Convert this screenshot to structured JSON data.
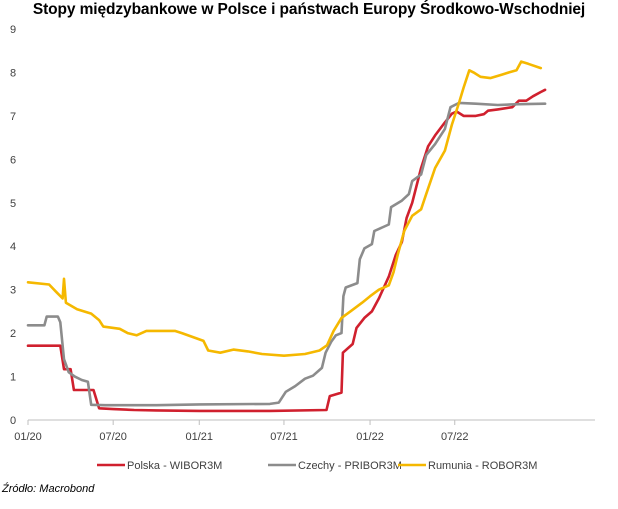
{
  "chart_data": {
    "type": "line",
    "title": "Stopy międzybankowe w Polsce i państwach Europy Środkowo-Wschodniej",
    "xlabel": "",
    "ylabel": "",
    "ylim": [
      0,
      9
    ],
    "yticks": [
      0,
      1,
      2,
      3,
      4,
      5,
      6,
      7,
      8,
      9
    ],
    "x_range": [
      "2020-01",
      "2023-05"
    ],
    "x_ticks": [
      "01/20",
      "07/20",
      "01/21",
      "07/21",
      "01/22",
      "07/22"
    ],
    "grid": false,
    "legend_position": "bottom",
    "source": "Źródło: Macrobond",
    "series": [
      {
        "name": "Polska - WIBOR3M",
        "color": "#d0202e",
        "points": [
          [
            "2020-01-01",
            1.71
          ],
          [
            "2020-03-10",
            1.71
          ],
          [
            "2020-03-18",
            1.17
          ],
          [
            "2020-04-01",
            1.17
          ],
          [
            "2020-04-08",
            0.69
          ],
          [
            "2020-05-20",
            0.69
          ],
          [
            "2020-06-01",
            0.27
          ],
          [
            "2020-07-01",
            0.25
          ],
          [
            "2020-08-15",
            0.23
          ],
          [
            "2020-10-01",
            0.22
          ],
          [
            "2021-01-01",
            0.21
          ],
          [
            "2021-06-01",
            0.21
          ],
          [
            "2021-09-30",
            0.23
          ],
          [
            "2021-10-07",
            0.55
          ],
          [
            "2021-11-01",
            0.63
          ],
          [
            "2021-11-04",
            1.55
          ],
          [
            "2021-11-25",
            1.75
          ],
          [
            "2021-12-03",
            2.12
          ],
          [
            "2021-12-20",
            2.35
          ],
          [
            "2022-01-05",
            2.5
          ],
          [
            "2022-01-20",
            2.8
          ],
          [
            "2022-02-10",
            3.3
          ],
          [
            "2022-02-25",
            3.8
          ],
          [
            "2022-03-10",
            4.1
          ],
          [
            "2022-03-20",
            4.65
          ],
          [
            "2022-04-01",
            5.0
          ],
          [
            "2022-04-20",
            5.8
          ],
          [
            "2022-05-05",
            6.3
          ],
          [
            "2022-05-20",
            6.55
          ],
          [
            "2022-06-10",
            6.85
          ],
          [
            "2022-06-25",
            7.05
          ],
          [
            "2022-07-05",
            7.1
          ],
          [
            "2022-07-20",
            7.0
          ],
          [
            "2022-08-15",
            7.0
          ],
          [
            "2022-09-01",
            7.04
          ],
          [
            "2022-09-10",
            7.12
          ],
          [
            "2022-10-01",
            7.15
          ],
          [
            "2022-11-01",
            7.2
          ],
          [
            "2022-11-15",
            7.35
          ],
          [
            "2022-12-01",
            7.35
          ],
          [
            "2022-12-15",
            7.45
          ],
          [
            "2023-01-01",
            7.55
          ],
          [
            "2023-01-10",
            7.6
          ]
        ]
      },
      {
        "name": "Czechy - PRIBOR3M",
        "color": "#8c8c8c",
        "points": [
          [
            "2020-01-01",
            2.18
          ],
          [
            "2020-02-05",
            2.18
          ],
          [
            "2020-02-10",
            2.38
          ],
          [
            "2020-03-05",
            2.38
          ],
          [
            "2020-03-10",
            2.25
          ],
          [
            "2020-03-18",
            1.4
          ],
          [
            "2020-03-28",
            1.1
          ],
          [
            "2020-04-10",
            1.0
          ],
          [
            "2020-04-25",
            0.92
          ],
          [
            "2020-05-08",
            0.88
          ],
          [
            "2020-05-15",
            0.35
          ],
          [
            "2020-06-15",
            0.34
          ],
          [
            "2020-10-01",
            0.34
          ],
          [
            "2021-01-01",
            0.36
          ],
          [
            "2021-06-01",
            0.37
          ],
          [
            "2021-06-20",
            0.4
          ],
          [
            "2021-07-05",
            0.65
          ],
          [
            "2021-07-25",
            0.78
          ],
          [
            "2021-08-15",
            0.95
          ],
          [
            "2021-09-01",
            1.02
          ],
          [
            "2021-09-20",
            1.2
          ],
          [
            "2021-09-28",
            1.55
          ],
          [
            "2021-10-10",
            1.8
          ],
          [
            "2021-10-20",
            1.95
          ],
          [
            "2021-11-01",
            2.0
          ],
          [
            "2021-11-05",
            2.85
          ],
          [
            "2021-11-10",
            3.05
          ],
          [
            "2021-12-05",
            3.15
          ],
          [
            "2021-12-10",
            3.7
          ],
          [
            "2021-12-20",
            3.95
          ],
          [
            "2022-01-05",
            4.05
          ],
          [
            "2022-01-10",
            4.35
          ],
          [
            "2022-02-10",
            4.5
          ],
          [
            "2022-02-15",
            4.9
          ],
          [
            "2022-03-10",
            5.05
          ],
          [
            "2022-03-25",
            5.2
          ],
          [
            "2022-04-01",
            5.5
          ],
          [
            "2022-04-20",
            5.65
          ],
          [
            "2022-05-01",
            6.1
          ],
          [
            "2022-05-20",
            6.35
          ],
          [
            "2022-06-10",
            6.7
          ],
          [
            "2022-06-22",
            7.2
          ],
          [
            "2022-07-10",
            7.3
          ],
          [
            "2022-08-15",
            7.28
          ],
          [
            "2022-10-01",
            7.25
          ],
          [
            "2022-11-15",
            7.27
          ],
          [
            "2023-01-10",
            7.28
          ]
        ]
      },
      {
        "name": "Rumunia - ROBOR3M",
        "color": "#f5b800",
        "points": [
          [
            "2020-01-01",
            3.17
          ],
          [
            "2020-02-15",
            3.12
          ],
          [
            "2020-03-01",
            2.95
          ],
          [
            "2020-03-15",
            2.8
          ],
          [
            "2020-03-18",
            3.25
          ],
          [
            "2020-03-22",
            2.7
          ],
          [
            "2020-04-15",
            2.55
          ],
          [
            "2020-05-15",
            2.45
          ],
          [
            "2020-06-01",
            2.3
          ],
          [
            "2020-06-10",
            2.15
          ],
          [
            "2020-07-15",
            2.1
          ],
          [
            "2020-08-01",
            2.0
          ],
          [
            "2020-08-20",
            1.95
          ],
          [
            "2020-09-10",
            2.05
          ],
          [
            "2020-10-15",
            2.05
          ],
          [
            "2020-11-10",
            2.05
          ],
          [
            "2020-11-25",
            2.0
          ],
          [
            "2021-01-10",
            1.82
          ],
          [
            "2021-01-20",
            1.6
          ],
          [
            "2021-02-15",
            1.55
          ],
          [
            "2021-03-15",
            1.62
          ],
          [
            "2021-04-15",
            1.58
          ],
          [
            "2021-05-15",
            1.52
          ],
          [
            "2021-07-01",
            1.48
          ],
          [
            "2021-08-15",
            1.52
          ],
          [
            "2021-09-15",
            1.6
          ],
          [
            "2021-10-01",
            1.72
          ],
          [
            "2021-10-15",
            2.05
          ],
          [
            "2021-11-01",
            2.35
          ],
          [
            "2021-11-20",
            2.5
          ],
          [
            "2021-12-15",
            2.7
          ],
          [
            "2022-01-01",
            2.85
          ],
          [
            "2022-01-20",
            3.0
          ],
          [
            "2022-02-10",
            3.1
          ],
          [
            "2022-02-20",
            3.4
          ],
          [
            "2022-03-01",
            3.8
          ],
          [
            "2022-03-15",
            4.35
          ],
          [
            "2022-04-01",
            4.7
          ],
          [
            "2022-04-20",
            4.85
          ],
          [
            "2022-05-01",
            5.2
          ],
          [
            "2022-05-20",
            5.8
          ],
          [
            "2022-06-10",
            6.2
          ],
          [
            "2022-06-25",
            6.8
          ],
          [
            "2022-07-10",
            7.3
          ],
          [
            "2022-07-20",
            7.65
          ],
          [
            "2022-08-01",
            8.05
          ],
          [
            "2022-08-10",
            8.0
          ],
          [
            "2022-08-25",
            7.9
          ],
          [
            "2022-09-15",
            7.87
          ],
          [
            "2022-10-10",
            7.95
          ],
          [
            "2022-10-25",
            8.0
          ],
          [
            "2022-11-10",
            8.05
          ],
          [
            "2022-11-20",
            8.25
          ],
          [
            "2022-12-05",
            8.2
          ],
          [
            "2023-01-01",
            8.1
          ]
        ]
      }
    ]
  }
}
